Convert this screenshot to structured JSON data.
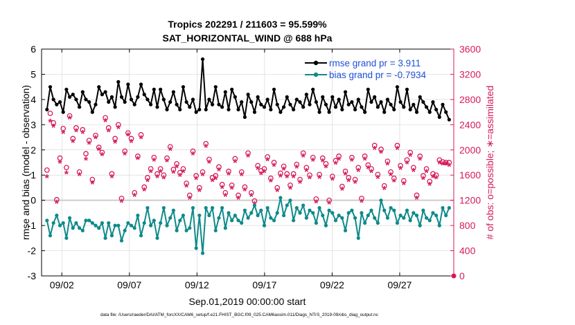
{
  "colors": {
    "rmse": "#000000",
    "bias": "#0e8a8a",
    "obs": "#d6195a",
    "legend_text": "#1f4fd8",
    "zero_line": "#cccccc",
    "grid": "#d9d9d9"
  },
  "chart_data": {
    "type": "line",
    "title": "Tropics 202291 / 211603 = 95.599%",
    "subtitle": "SAT_HORIZONTAL_WIND @ 688 hPa",
    "xlabel": "Sep.01,2019 00:00:00 start",
    "ylabel": "rmse and bias (model - observation)",
    "y2label": "# of obs: o=possible; ∗=assimilated",
    "footnote": "data file: /Users/raeder/DAI/ATM_forcXX/CAM6_setup/f.e21.FHIST_BGC.f09_025.CAM6assim.011/Diags_NTrS_2019-09/obs_diag_output.nc",
    "xlim": [
      0.5,
      31.0
    ],
    "ylim": [
      -3,
      6
    ],
    "y2lim": [
      0,
      3600
    ],
    "xticks": [
      2,
      7,
      12,
      17,
      22,
      27
    ],
    "xtick_labels": [
      "09/02",
      "09/07",
      "09/12",
      "09/17",
      "09/22",
      "09/27"
    ],
    "yticks": [
      -3,
      -2,
      -1,
      0,
      1,
      2,
      3,
      4,
      5,
      6
    ],
    "y2ticks": [
      0,
      400,
      800,
      1200,
      1600,
      2000,
      2400,
      2800,
      3200,
      3600
    ],
    "grid": true,
    "legend_position": "top-right",
    "legend": [
      {
        "label": "rmse grand pr = 3.911",
        "series": "rmse"
      },
      {
        "label": "bias grand pr = -0.7934",
        "series": "bias"
      }
    ],
    "series": [
      {
        "name": "rmse",
        "axis": "left",
        "values": [
          3.6,
          4.5,
          4.0,
          3.8,
          3.9,
          3.5,
          4.4,
          4.1,
          4.2,
          4.0,
          3.7,
          4.3,
          4.0,
          3.9,
          3.5,
          3.8,
          4.5,
          4.2,
          4.3,
          3.9,
          4.1,
          3.7,
          4.7,
          4.1,
          3.9,
          4.6,
          4.0,
          3.8,
          4.1,
          4.6,
          4.2,
          4.0,
          3.8,
          4.4,
          3.7,
          4.4,
          4.0,
          3.6,
          3.9,
          4.3,
          3.8,
          3.6,
          4.5,
          3.9,
          3.7,
          4.0,
          3.5,
          3.6,
          5.6,
          3.6,
          4.0,
          3.8,
          4.5,
          3.8,
          3.7,
          4.3,
          3.6,
          4.4,
          4.1,
          3.6,
          3.9,
          3.3,
          4.2,
          3.9,
          3.5,
          4.1,
          3.8,
          3.7,
          4.0,
          3.6,
          4.4,
          3.8,
          3.5,
          3.7,
          4.1,
          3.8,
          3.6,
          4.0,
          3.9,
          3.7,
          4.2,
          3.8,
          4.4,
          3.9,
          3.5,
          4.1,
          3.8,
          3.5,
          4.1,
          3.7,
          4.0,
          3.6,
          4.3,
          3.8,
          3.9,
          3.6,
          4.0,
          3.7,
          3.5,
          4.4,
          3.9,
          4.1,
          3.7,
          3.9,
          3.5,
          4.0,
          3.8,
          3.6,
          4.5,
          3.9,
          3.7,
          4.4,
          3.6,
          3.8,
          3.5,
          4.1,
          3.9,
          3.7,
          3.5,
          3.9,
          3.6,
          3.3,
          3.8,
          3.5,
          3.2
        ],
        "x_start": 0.9,
        "x_step": 0.24
      },
      {
        "name": "bias",
        "axis": "left",
        "values": [
          -0.8,
          -1.4,
          -0.9,
          -0.6,
          -1.0,
          -0.9,
          -1.5,
          -0.7,
          -1.1,
          -0.9,
          -1.1,
          -1.2,
          -0.8,
          -0.8,
          -0.9,
          -1.0,
          -1.1,
          -0.9,
          -1.5,
          -0.9,
          -1.4,
          -1.0,
          -1.0,
          -1.6,
          -1.2,
          -0.9,
          -1.0,
          -1.1,
          -0.6,
          -1.4,
          -0.9,
          -0.3,
          -1.0,
          -0.8,
          -1.5,
          -0.9,
          -0.3,
          -1.0,
          -0.7,
          -0.4,
          -1.2,
          -0.8,
          -0.6,
          -1.2,
          -1.1,
          -0.3,
          -1.9,
          -0.6,
          -2.1,
          -0.3,
          -0.6,
          -0.3,
          -1.2,
          -0.7,
          -0.3,
          -1.1,
          -0.5,
          -0.8,
          -0.6,
          -0.8,
          -0.9,
          -0.4,
          -0.7,
          -0.5,
          -0.2,
          -0.6,
          -0.4,
          -1.0,
          -0.3,
          -0.7,
          -0.8,
          -0.5,
          0.1,
          -0.6,
          -0.2,
          0.0,
          -0.8,
          -0.3,
          -0.5,
          -0.2,
          -0.7,
          -0.4,
          -0.5,
          -0.9,
          -0.3,
          -0.6,
          -1.0,
          -0.4,
          -0.5,
          -0.8,
          -0.6,
          -0.7,
          -1.2,
          -0.5,
          -0.4,
          -0.7,
          -1.5,
          -0.5,
          -0.9,
          -0.6,
          -0.4,
          -0.7,
          -0.9,
          0.0,
          -0.4,
          -0.7,
          -0.3,
          -0.4,
          -0.9,
          -0.6,
          -0.7,
          -0.4,
          -0.8,
          -0.5,
          -0.6,
          -1.0,
          -0.4,
          -0.7,
          -0.8,
          -0.5,
          -0.6,
          -1.0,
          -0.3,
          -0.6,
          -0.3
        ],
        "x_start": 0.9,
        "x_step": 0.24
      },
      {
        "name": "obs_possible",
        "axis": "right",
        "marker": "o",
        "values": [
          1680,
          2580,
          2430,
          1210,
          1870,
          2340,
          1720,
          2540,
          2180,
          2350,
          1650,
          2320,
          1940,
          2150,
          1530,
          2230,
          2040,
          1960,
          2510,
          2350,
          1620,
          2180,
          2400,
          1230,
          1980,
          2270,
          2180,
          1320,
          1900,
          2240,
          1410,
          1560,
          1700,
          1880,
          1620,
          1700,
          1600,
          1870,
          2050,
          1690,
          1780,
          1640,
          1700,
          1470,
          1280,
          1980,
          1590,
          1400,
          1650,
          2100,
          1850,
          1560,
          1590,
          1730,
          1450,
          1320,
          1660,
          1440,
          1860,
          1280,
          1650,
          1410,
          1950,
          1320,
          1190,
          1750,
          1670,
          1700,
          1890,
          1550,
          1800,
          1400,
          1630,
          1740,
          1620,
          1440,
          1620,
          1770,
          1530,
          1950,
          1720,
          1600,
          1880,
          1220,
          1610,
          1870,
          1780,
          1200,
          1580,
          1830,
          1900,
          1420,
          1660,
          1560,
          1880,
          1530,
          1720,
          1230,
          1900,
          1760,
          1700,
          2070,
          1610,
          2010,
          1430,
          1820,
          1650,
          1550,
          2070,
          1750,
          1510,
          1840,
          1960,
          1720,
          1280,
          1900,
          1590,
          1700,
          1500,
          1620,
          1600,
          1840,
          1810,
          1800,
          1800
        ],
        "x_start": 0.9,
        "x_step": 0.24
      },
      {
        "name": "obs_assimilated",
        "axis": "right",
        "marker": "*",
        "values": [
          1560,
          2440,
          2360,
          1150,
          1790,
          2260,
          1620,
          2490,
          2120,
          2290,
          1590,
          2260,
          1840,
          2090,
          1460,
          2180,
          1990,
          1910,
          2450,
          2290,
          1560,
          2110,
          2340,
          1170,
          1920,
          2220,
          2120,
          1260,
          1850,
          2180,
          1350,
          1500,
          1640,
          1820,
          1560,
          1640,
          1540,
          1810,
          1990,
          1630,
          1720,
          1580,
          1640,
          1410,
          1220,
          1920,
          1530,
          1340,
          1590,
          2040,
          1790,
          1500,
          1530,
          1670,
          1390,
          1260,
          1600,
          1380,
          1800,
          1220,
          1590,
          1350,
          1890,
          1260,
          1130,
          1690,
          1610,
          1640,
          1830,
          1490,
          1740,
          1340,
          1570,
          1680,
          1560,
          1380,
          1560,
          1710,
          1470,
          1890,
          1660,
          1540,
          1820,
          1160,
          1550,
          1810,
          1720,
          1140,
          1520,
          1770,
          1840,
          1360,
          1600,
          1500,
          1820,
          1470,
          1660,
          1170,
          1840,
          1700,
          1640,
          2010,
          1550,
          1950,
          1370,
          1760,
          1590,
          1490,
          2010,
          1690,
          1450,
          1780,
          1900,
          1660,
          1220,
          1840,
          1530,
          1640,
          1440,
          1560,
          1540,
          1780,
          1760,
          1760,
          1740
        ],
        "x_start": 0.9,
        "x_step": 0.24
      }
    ]
  }
}
